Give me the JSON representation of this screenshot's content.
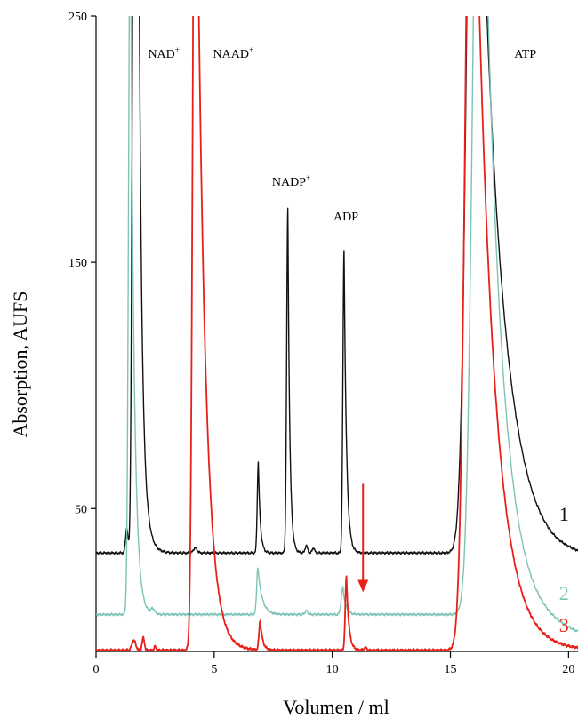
{
  "chart_data": {
    "type": "line",
    "xlabel": "Volumen / ml",
    "ylabel": "Absorption, AUFS",
    "xlim": [
      0,
      20.4
    ],
    "ylim": [
      -8,
      250
    ],
    "x_ticks": [
      {
        "value": 0,
        "label": "0"
      },
      {
        "value": 5,
        "label": "5"
      },
      {
        "value": 10,
        "label": "10"
      },
      {
        "value": 15,
        "label": "15"
      },
      {
        "value": 20,
        "label": "20"
      }
    ],
    "y_ticks": [
      {
        "value": 50,
        "label": "50"
      },
      {
        "value": 150,
        "label": "150"
      },
      {
        "value": 250,
        "label": "250"
      }
    ],
    "grid": false,
    "legend": "none",
    "series": [
      {
        "tag": "1",
        "color": "#111111",
        "tag_x": 19.6,
        "tag_y": 45,
        "baseline": 32,
        "end_rise": {
          "start": 17.8,
          "end": 19.3,
          "offset": -2
        },
        "peaks": [
          {
            "x": 1.3,
            "h": 10,
            "w": 0.05
          },
          {
            "x": 1.6,
            "h": 300,
            "w": 0.07,
            "tail": 0.2
          },
          {
            "x": 1.75,
            "h": 300,
            "w": 0.05,
            "tail": 0.1
          },
          {
            "x": 4.2,
            "h": 2,
            "w": 0.08
          },
          {
            "x": 6.87,
            "h": 37,
            "w": 0.045,
            "tail": 0.08
          },
          {
            "x": 8.12,
            "h": 140,
            "w": 0.05,
            "tail": 0.08
          },
          {
            "x": 8.9,
            "h": 3,
            "w": 0.05
          },
          {
            "x": 9.2,
            "h": 2,
            "w": 0.05
          },
          {
            "x": 10.5,
            "h": 123,
            "w": 0.05,
            "tail": 0.1
          },
          {
            "x": 16.0,
            "h": 400,
            "w": 0.28,
            "tail": 0.9
          }
        ]
      },
      {
        "tag": "2",
        "color": "#7cc4b6",
        "tag_x": 19.6,
        "tag_y": 13,
        "baseline": 7,
        "end_rise": {
          "start": 17.5,
          "end": 20.4,
          "offset": -8
        },
        "peaks": [
          {
            "x": 1.45,
            "h": 300,
            "w": 0.07,
            "tail": 0.15
          },
          {
            "x": 2.4,
            "h": 2,
            "w": 0.08
          },
          {
            "x": 6.85,
            "h": 19,
            "w": 0.05,
            "tail": 0.18
          },
          {
            "x": 8.9,
            "h": 1.5,
            "w": 0.06
          },
          {
            "x": 10.45,
            "h": 11,
            "w": 0.07,
            "tail": 0.12
          },
          {
            "x": 16.25,
            "h": 400,
            "w": 0.28,
            "tail": 0.7
          }
        ]
      },
      {
        "tag": "3",
        "color": "#e8201a",
        "tag_x": 19.6,
        "tag_y": 0,
        "baseline": -7.5,
        "end_rise": {
          "start": 17.5,
          "end": 19.2,
          "offset": 0
        },
        "peaks": [
          {
            "x": 1.6,
            "h": 4,
            "w": 0.08
          },
          {
            "x": 2.0,
            "h": 5,
            "w": 0.05
          },
          {
            "x": 2.5,
            "h": 1.5,
            "w": 0.04
          },
          {
            "x": 4.2,
            "h": 400,
            "w": 0.1,
            "tail": 0.35
          },
          {
            "x": 6.95,
            "h": 12,
            "w": 0.05,
            "tail": 0.1
          },
          {
            "x": 10.6,
            "h": 30,
            "w": 0.05,
            "tail": 0.1
          },
          {
            "x": 11.4,
            "h": 1,
            "w": 0.06
          },
          {
            "x": 15.9,
            "h": 400,
            "w": 0.25,
            "tail": 0.75
          }
        ]
      }
    ],
    "annotations": [
      {
        "base": "NAD",
        "sup": "+",
        "x": 2.2,
        "y": 233
      },
      {
        "base": "NAAD",
        "sup": "+",
        "x": 4.95,
        "y": 233
      },
      {
        "base": "NADP",
        "sup": "+",
        "x": 7.45,
        "y": 181
      },
      {
        "base": "ADP",
        "sup": "",
        "x": 10.05,
        "y": 167
      },
      {
        "base": "ATP",
        "sup": "",
        "x": 17.7,
        "y": 233
      }
    ],
    "arrow": {
      "x": 11.3,
      "y_from": 60,
      "y_to": 16,
      "color": "#e8201a"
    }
  }
}
